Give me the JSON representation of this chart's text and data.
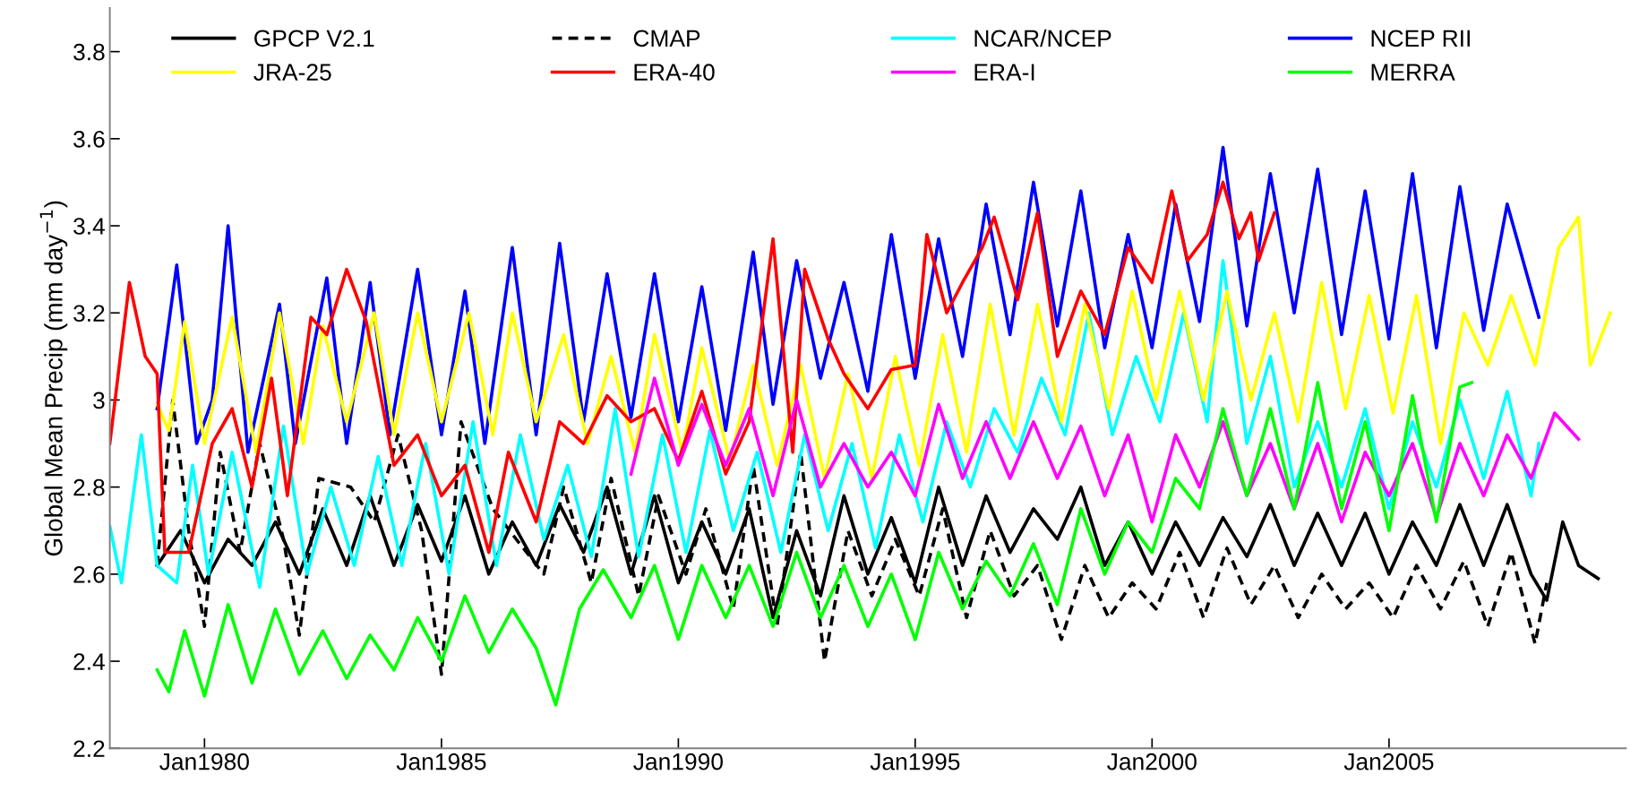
{
  "chart_data": {
    "type": "line",
    "ylabel": "Global Mean Precip (mm day$^{−1}$)",
    "xlim": [
      "1978-01",
      "2010-01"
    ],
    "xticks": [
      {
        "value": "1980-01",
        "label": "Jan1980"
      },
      {
        "value": "1985-01",
        "label": "Jan1985"
      },
      {
        "value": "1990-01",
        "label": "Jan1990"
      },
      {
        "value": "1995-01",
        "label": "Jan1995"
      },
      {
        "value": "2000-01",
        "label": "Jan2000"
      },
      {
        "value": "2005-01",
        "label": "Jan2005"
      }
    ],
    "ylim": [
      2.2,
      3.9
    ],
    "yticks": [
      2.2,
      2.4,
      2.6,
      2.8,
      3,
      3.2,
      3.4,
      3.6,
      3.8
    ],
    "grid": false,
    "legend": "top",
    "marker": "none",
    "series": [
      {
        "name": "GPCP V2.1",
        "color": "#000000",
        "line_style": "solid",
        "x": [
          "1979-01",
          "1979-07",
          "1980-01",
          "1980-07",
          "1981-01",
          "1981-07",
          "1982-01",
          "1982-07",
          "1983-01",
          "1983-07",
          "1984-01",
          "1984-07",
          "1985-01",
          "1985-07",
          "1986-01",
          "1986-07",
          "1987-01",
          "1987-07",
          "1988-01",
          "1988-07",
          "1989-01",
          "1989-07",
          "1990-01",
          "1990-07",
          "1991-01",
          "1991-07",
          "1992-01",
          "1992-07",
          "1993-01",
          "1993-07",
          "1994-01",
          "1994-07",
          "1995-01",
          "1995-07",
          "1996-01",
          "1996-07",
          "1997-01",
          "1997-07",
          "1998-01",
          "1998-07",
          "1999-01",
          "1999-07",
          "2000-01",
          "2000-07",
          "2001-01",
          "2001-07",
          "2002-01",
          "2002-07",
          "2003-01",
          "2003-07",
          "2004-01",
          "2004-07",
          "2005-01",
          "2005-07",
          "2006-01",
          "2006-07",
          "2007-01",
          "2007-07",
          "2008-01",
          "2008-05",
          "2008-09",
          "2009-01",
          "2009-06"
        ],
        "values": [
          2.62,
          2.7,
          2.58,
          2.68,
          2.62,
          2.72,
          2.6,
          2.75,
          2.62,
          2.78,
          2.62,
          2.76,
          2.63,
          2.78,
          2.6,
          2.72,
          2.62,
          2.76,
          2.65,
          2.8,
          2.6,
          2.78,
          2.58,
          2.72,
          2.6,
          2.75,
          2.5,
          2.7,
          2.55,
          2.78,
          2.6,
          2.73,
          2.58,
          2.8,
          2.62,
          2.78,
          2.65,
          2.75,
          2.68,
          2.8,
          2.62,
          2.72,
          2.6,
          2.72,
          2.62,
          2.73,
          2.64,
          2.76,
          2.62,
          2.74,
          2.62,
          2.74,
          2.6,
          2.72,
          2.62,
          2.76,
          2.62,
          2.76,
          2.6,
          2.54,
          2.72,
          2.62,
          2.59
        ]
      },
      {
        "name": "CMAP",
        "color": "#000000",
        "line_style": "dashed",
        "x": [
          "1979-01",
          "1979-05",
          "1979-09",
          "1980-01",
          "1980-05",
          "1980-10",
          "1981-03",
          "1981-09",
          "1982-01",
          "1982-06",
          "1983-02",
          "1983-08",
          "1984-02",
          "1984-08",
          "1985-01",
          "1985-06",
          "1986-02",
          "1986-08",
          "1987-03",
          "1987-08",
          "1988-03",
          "1988-08",
          "1989-03",
          "1989-08",
          "1990-03",
          "1990-08",
          "1991-03",
          "1991-08",
          "1992-02",
          "1992-08",
          "1993-02",
          "1993-08",
          "1994-02",
          "1994-08",
          "1995-02",
          "1995-08",
          "1996-02",
          "1996-08",
          "1997-02",
          "1997-08",
          "1998-02",
          "1998-08",
          "1999-02",
          "1999-08",
          "2000-02",
          "2000-08",
          "2001-02",
          "2001-08",
          "2002-02",
          "2002-08",
          "2003-02",
          "2003-08",
          "2004-02",
          "2004-08",
          "2005-02",
          "2005-08",
          "2006-02",
          "2006-08",
          "2007-02",
          "2007-08",
          "2008-02",
          "2008-05"
        ],
        "values": [
          2.62,
          3.0,
          2.7,
          2.48,
          2.88,
          2.65,
          2.9,
          2.68,
          2.46,
          2.82,
          2.8,
          2.72,
          2.92,
          2.7,
          2.37,
          2.95,
          2.75,
          2.68,
          2.6,
          2.8,
          2.58,
          2.82,
          2.55,
          2.78,
          2.6,
          2.75,
          2.52,
          2.85,
          2.48,
          2.88,
          2.4,
          2.7,
          2.55,
          2.68,
          2.55,
          2.75,
          2.5,
          2.7,
          2.55,
          2.62,
          2.45,
          2.62,
          2.5,
          2.58,
          2.52,
          2.65,
          2.5,
          2.66,
          2.53,
          2.62,
          2.5,
          2.6,
          2.52,
          2.58,
          2.5,
          2.62,
          2.52,
          2.63,
          2.48,
          2.65,
          2.44,
          2.58
        ]
      },
      {
        "name": "NCAR/NCEP",
        "color": "#00ffff",
        "line_style": "solid",
        "x": [
          "1978-01",
          "1978-04",
          "1978-09",
          "1979-01",
          "1979-06",
          "1979-10",
          "1980-02",
          "1980-08",
          "1981-03",
          "1981-09",
          "1982-03",
          "1982-09",
          "1983-03",
          "1983-09",
          "1984-03",
          "1984-09",
          "1985-03",
          "1985-09",
          "1986-03",
          "1986-09",
          "1987-03",
          "1987-09",
          "1988-03",
          "1988-09",
          "1989-03",
          "1989-09",
          "1990-03",
          "1990-09",
          "1991-03",
          "1991-09",
          "1992-03",
          "1992-09",
          "1993-03",
          "1993-09",
          "1994-03",
          "1994-09",
          "1995-03",
          "1995-09",
          "1996-03",
          "1996-09",
          "1997-03",
          "1997-09",
          "1998-03",
          "1998-09",
          "1999-03",
          "1999-09",
          "2000-03",
          "2000-09",
          "2001-03",
          "2001-07",
          "2002-01",
          "2002-07",
          "2003-01",
          "2003-07",
          "2004-01",
          "2004-07",
          "2005-01",
          "2005-07",
          "2006-01",
          "2006-07",
          "2007-01",
          "2007-07",
          "2008-01",
          "2008-03"
        ],
        "values": [
          2.71,
          2.58,
          2.92,
          2.62,
          2.58,
          2.85,
          2.6,
          2.88,
          2.57,
          2.94,
          2.6,
          2.8,
          2.62,
          2.87,
          2.62,
          2.9,
          2.6,
          2.95,
          2.62,
          2.92,
          2.68,
          2.85,
          2.64,
          2.98,
          2.64,
          2.92,
          2.65,
          2.93,
          2.7,
          2.88,
          2.65,
          2.92,
          2.7,
          2.9,
          2.66,
          2.92,
          2.72,
          2.95,
          2.8,
          2.98,
          2.88,
          3.05,
          2.92,
          3.2,
          2.92,
          3.1,
          2.95,
          3.2,
          2.95,
          3.32,
          2.9,
          3.1,
          2.8,
          2.95,
          2.8,
          2.98,
          2.75,
          2.95,
          2.8,
          3.0,
          2.82,
          3.02,
          2.78,
          2.9
        ]
      },
      {
        "name": "NCEP RII",
        "color": "#0000ff",
        "line_style": "solid",
        "x": [
          "1979-01",
          "1979-06",
          "1979-11",
          "1980-03",
          "1980-07",
          "1980-12",
          "1981-08",
          "1981-12",
          "1982-08",
          "1983-01",
          "1983-07",
          "1983-12",
          "1984-07",
          "1985-01",
          "1985-07",
          "1985-12",
          "1986-07",
          "1987-01",
          "1987-07",
          "1988-01",
          "1988-07",
          "1989-01",
          "1989-07",
          "1990-01",
          "1990-07",
          "1991-01",
          "1991-08",
          "1992-01",
          "1992-07",
          "1993-01",
          "1993-07",
          "1994-01",
          "1994-07",
          "1995-01",
          "1995-07",
          "1996-01",
          "1996-07",
          "1997-01",
          "1997-07",
          "1998-01",
          "1998-07",
          "1999-01",
          "1999-07",
          "2000-01",
          "2000-07",
          "2001-01",
          "2001-07",
          "2002-01",
          "2002-07",
          "2003-01",
          "2003-07",
          "2004-01",
          "2004-07",
          "2005-01",
          "2005-07",
          "2006-01",
          "2006-07",
          "2007-01",
          "2007-07",
          "2008-03"
        ],
        "values": [
          2.98,
          3.31,
          2.9,
          3.0,
          3.4,
          2.88,
          3.22,
          2.9,
          3.28,
          2.9,
          3.27,
          2.92,
          3.3,
          2.92,
          3.25,
          2.9,
          3.35,
          2.92,
          3.36,
          2.95,
          3.29,
          2.96,
          3.29,
          2.95,
          3.26,
          2.93,
          3.34,
          2.99,
          3.32,
          3.05,
          3.27,
          3.02,
          3.38,
          3.05,
          3.37,
          3.1,
          3.45,
          3.15,
          3.5,
          3.17,
          3.48,
          3.12,
          3.38,
          3.12,
          3.45,
          3.18,
          3.58,
          3.17,
          3.52,
          3.2,
          3.53,
          3.15,
          3.48,
          3.14,
          3.52,
          3.12,
          3.49,
          3.16,
          3.45,
          3.19
        ]
      },
      {
        "name": "JRA-25",
        "color": "#ffff00",
        "line_style": "solid",
        "x": [
          "1979-01",
          "1979-04",
          "1979-08",
          "1980-01",
          "1980-08",
          "1981-02",
          "1981-08",
          "1982-02",
          "1982-07",
          "1983-01",
          "1983-08",
          "1984-01",
          "1984-07",
          "1985-01",
          "1985-08",
          "1986-02",
          "1986-07",
          "1987-01",
          "1987-08",
          "1988-02",
          "1988-08",
          "1989-02",
          "1989-07",
          "1990-02",
          "1990-07",
          "1991-02",
          "1991-08",
          "1992-02",
          "1992-08",
          "1993-02",
          "1993-08",
          "1994-02",
          "1994-08",
          "1995-02",
          "1995-08",
          "1996-02",
          "1996-08",
          "1997-02",
          "1997-08",
          "1998-02",
          "1998-08",
          "1999-02",
          "1999-08",
          "2000-02",
          "2000-08",
          "2001-02",
          "2001-08",
          "2002-02",
          "2002-08",
          "2003-02",
          "2003-08",
          "2004-02",
          "2004-08",
          "2005-02",
          "2005-08",
          "2006-02",
          "2006-08",
          "2007-02",
          "2007-08",
          "2008-02",
          "2008-08",
          "2009-01",
          "2009-04",
          "2009-09"
        ],
        "values": [
          2.99,
          2.93,
          3.18,
          2.9,
          3.19,
          2.88,
          3.2,
          2.9,
          3.17,
          2.95,
          3.2,
          2.92,
          3.2,
          2.95,
          3.2,
          2.92,
          3.2,
          2.95,
          3.15,
          2.9,
          3.1,
          2.88,
          3.15,
          2.88,
          3.12,
          2.86,
          3.08,
          2.85,
          3.08,
          2.82,
          3.06,
          2.82,
          3.1,
          2.85,
          3.15,
          2.88,
          3.22,
          2.92,
          3.22,
          2.95,
          3.22,
          2.98,
          3.25,
          3.0,
          3.25,
          3.0,
          3.25,
          3.0,
          3.2,
          2.95,
          3.27,
          2.98,
          3.24,
          2.97,
          3.24,
          2.9,
          3.2,
          3.08,
          3.24,
          3.08,
          3.35,
          3.42,
          3.08,
          3.2
        ]
      },
      {
        "name": "ERA-40",
        "color": "#ff0000",
        "line_style": "solid",
        "x": [
          "1978-01",
          "1978-06",
          "1978-10",
          "1979-01",
          "1979-03",
          "1979-09",
          "1980-03",
          "1980-08",
          "1981-01",
          "1981-06",
          "1981-10",
          "1982-04",
          "1982-08",
          "1983-01",
          "1983-06",
          "1984-01",
          "1984-07",
          "1985-01",
          "1985-07",
          "1986-01",
          "1986-06",
          "1987-01",
          "1987-07",
          "1988-01",
          "1988-07",
          "1989-01",
          "1989-07",
          "1990-01",
          "1990-07",
          "1991-01",
          "1991-07",
          "1992-01",
          "1992-06",
          "1992-09",
          "1993-03",
          "1993-07",
          "1994-01",
          "1994-07",
          "1995-01",
          "1995-04",
          "1995-09",
          "1996-01",
          "1996-06",
          "1996-09",
          "1997-03",
          "1997-08",
          "1998-01",
          "1998-07",
          "1999-01",
          "1999-07",
          "2000-01",
          "2000-06",
          "2000-10",
          "2001-03",
          "2001-07",
          "2001-11",
          "2002-02",
          "2002-04",
          "2002-08"
        ],
        "values": [
          2.9,
          3.27,
          3.1,
          3.06,
          2.65,
          2.65,
          2.9,
          2.98,
          2.8,
          3.05,
          2.78,
          3.19,
          3.15,
          3.3,
          3.18,
          2.85,
          2.92,
          2.78,
          2.85,
          2.65,
          2.88,
          2.72,
          2.95,
          2.9,
          3.01,
          2.95,
          2.98,
          2.86,
          3.02,
          2.83,
          2.95,
          3.37,
          2.88,
          3.3,
          3.14,
          3.06,
          2.98,
          3.07,
          3.08,
          3.38,
          3.2,
          3.27,
          3.35,
          3.42,
          3.23,
          3.43,
          3.1,
          3.25,
          3.15,
          3.35,
          3.27,
          3.48,
          3.32,
          3.38,
          3.5,
          3.37,
          3.43,
          3.32,
          3.43
        ]
      },
      {
        "name": "ERA-I",
        "color": "#ff00ff",
        "line_style": "solid",
        "x": [
          "1989-01",
          "1989-07",
          "1990-01",
          "1990-07",
          "1991-01",
          "1991-07",
          "1992-01",
          "1992-07",
          "1993-01",
          "1993-07",
          "1994-01",
          "1994-07",
          "1995-01",
          "1995-07",
          "1996-01",
          "1996-07",
          "1997-01",
          "1997-07",
          "1998-01",
          "1998-07",
          "1999-01",
          "1999-07",
          "2000-01",
          "2000-07",
          "2001-01",
          "2001-07",
          "2002-01",
          "2002-07",
          "2003-01",
          "2003-07",
          "2004-01",
          "2004-07",
          "2005-01",
          "2005-07",
          "2006-01",
          "2006-07",
          "2007-01",
          "2007-07",
          "2008-01",
          "2008-07",
          "2009-01"
        ],
        "values": [
          2.83,
          3.05,
          2.85,
          2.99,
          2.85,
          2.98,
          2.78,
          3.0,
          2.8,
          2.9,
          2.8,
          2.88,
          2.78,
          2.99,
          2.82,
          2.95,
          2.82,
          2.95,
          2.82,
          2.94,
          2.78,
          2.92,
          2.72,
          2.92,
          2.8,
          2.95,
          2.78,
          2.9,
          2.75,
          2.9,
          2.72,
          2.88,
          2.78,
          2.9,
          2.73,
          2.9,
          2.78,
          2.92,
          2.82,
          2.97,
          2.91
        ]
      },
      {
        "name": "MERRA",
        "color": "#00ff00",
        "line_style": "solid",
        "x": [
          "1979-01",
          "1979-04",
          "1979-08",
          "1980-01",
          "1980-07",
          "1981-01",
          "1981-07",
          "1982-01",
          "1982-07",
          "1983-01",
          "1983-07",
          "1984-01",
          "1984-07",
          "1985-01",
          "1985-07",
          "1986-01",
          "1986-07",
          "1987-01",
          "1987-06",
          "1987-12",
          "1988-06",
          "1989-01",
          "1989-07",
          "1990-01",
          "1990-07",
          "1991-01",
          "1991-07",
          "1992-01",
          "1992-07",
          "1993-01",
          "1993-07",
          "1994-01",
          "1994-07",
          "1995-01",
          "1995-07",
          "1996-01",
          "1996-07",
          "1997-01",
          "1997-07",
          "1998-01",
          "1998-07",
          "1999-01",
          "1999-07",
          "2000-01",
          "2000-07",
          "2001-01",
          "2001-07",
          "2002-01",
          "2002-07",
          "2003-01",
          "2003-07",
          "2004-01",
          "2004-07",
          "2005-01",
          "2005-07",
          "2006-01",
          "2006-07",
          "2006-10"
        ],
        "values": [
          2.38,
          2.33,
          2.47,
          2.32,
          2.53,
          2.35,
          2.52,
          2.37,
          2.47,
          2.36,
          2.46,
          2.38,
          2.5,
          2.4,
          2.55,
          2.42,
          2.52,
          2.43,
          2.3,
          2.52,
          2.61,
          2.5,
          2.62,
          2.45,
          2.62,
          2.5,
          2.62,
          2.48,
          2.65,
          2.5,
          2.62,
          2.48,
          2.6,
          2.45,
          2.65,
          2.52,
          2.63,
          2.55,
          2.67,
          2.53,
          2.75,
          2.6,
          2.72,
          2.65,
          2.82,
          2.75,
          2.98,
          2.78,
          2.98,
          2.75,
          3.04,
          2.75,
          2.95,
          2.7,
          3.01,
          2.72,
          3.03,
          3.04
        ]
      }
    ]
  }
}
